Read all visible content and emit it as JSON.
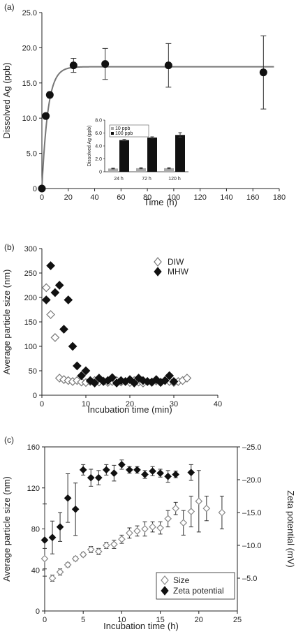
{
  "chart_data": [
    {
      "panel_label": "(a)",
      "type": "scatter",
      "xlabel": "Time (h)",
      "ylabel": "Dissolved Ag (ppb)",
      "xlim": [
        0,
        180
      ],
      "ylim": [
        0,
        25
      ],
      "x_ticks": [
        "0",
        "20",
        "40",
        "60",
        "80",
        "100",
        "120",
        "140",
        "160",
        "180"
      ],
      "y_ticks": [
        "0",
        "5.0",
        "10.0",
        "15.0",
        "20.0",
        "25.0"
      ],
      "series": [
        {
          "x": [
            0,
            3,
            6,
            24,
            48,
            96,
            168
          ],
          "y": [
            0,
            10.3,
            13.3,
            17.5,
            17.7,
            17.5,
            16.5
          ],
          "err": [
            0,
            0,
            0,
            1.0,
            2.2,
            3.1,
            5.2
          ],
          "color": "#111111"
        }
      ],
      "fit_curve": {
        "plateau": 17.3,
        "rate": 0.22
      },
      "inset": {
        "type": "bar",
        "ylabel": "Dissolved Ag (ppb)",
        "ylim": [
          0,
          8
        ],
        "y_ticks": [
          "0",
          "2.0",
          "4.0",
          "6.0",
          "8.0"
        ],
        "categories": [
          "24 h",
          "72 h",
          "120 h"
        ],
        "series": [
          {
            "name": "10 ppb",
            "values": [
              0.5,
              0.55,
              0.55
            ],
            "err": [
              0.06,
              0.08,
              0.08
            ],
            "color": "#aaaaaa"
          },
          {
            "name": "100 ppb",
            "values": [
              4.9,
              5.3,
              5.7
            ],
            "err": [
              0.1,
              0.1,
              0.35
            ],
            "color": "#111111"
          }
        ]
      }
    },
    {
      "panel_label": "(b)",
      "type": "scatter",
      "xlabel": "Incubation time (min)",
      "ylabel": "Average particle size (nm)",
      "xlim": [
        0,
        40
      ],
      "ylim": [
        0,
        300
      ],
      "x_ticks": [
        "0",
        "10",
        "20",
        "30",
        "40"
      ],
      "y_ticks": [
        "0",
        "50",
        "100",
        "150",
        "200",
        "250",
        "300"
      ],
      "series": [
        {
          "name": "DIW",
          "marker": "open-diamond",
          "x": [
            1,
            2,
            3,
            4,
            5,
            6,
            7,
            8,
            9,
            10,
            11,
            12,
            13,
            14,
            15,
            16,
            17,
            18,
            19,
            20,
            21,
            22,
            23,
            24,
            25,
            26,
            27,
            28,
            29,
            30,
            31,
            32,
            33
          ],
          "y": [
            220,
            165,
            118,
            35,
            32,
            30,
            28,
            30,
            27,
            26,
            28,
            30,
            27,
            29,
            26,
            28,
            30,
            27,
            28,
            26,
            30,
            27,
            25,
            28,
            26,
            29,
            27,
            30,
            28,
            26,
            28,
            30,
            35
          ]
        },
        {
          "name": "MHW",
          "marker": "filled-diamond",
          "x": [
            1,
            2,
            3,
            4,
            5,
            6,
            7,
            8,
            9,
            10,
            11,
            12,
            13,
            14,
            15,
            16,
            17,
            18,
            19,
            20,
            21,
            22,
            23,
            24,
            25,
            26,
            27,
            28,
            29,
            30
          ],
          "y": [
            195,
            265,
            210,
            225,
            135,
            195,
            100,
            60,
            40,
            50,
            30,
            25,
            35,
            28,
            30,
            36,
            25,
            30,
            28,
            32,
            25,
            35,
            30,
            28,
            27,
            32,
            26,
            30,
            40,
            28
          ]
        }
      ],
      "legend": "top-right"
    },
    {
      "panel_label": "(c)",
      "type": "scatter",
      "xlabel": "Incubation time (h)",
      "ylabel": "Average particle size (nm)",
      "y2label": "Zeta potential (mV)",
      "xlim": [
        0,
        25
      ],
      "ylim": [
        0,
        160
      ],
      "y2lim": [
        0,
        -25
      ],
      "x_ticks": [
        "0",
        "5",
        "10",
        "15",
        "20",
        "25"
      ],
      "y_ticks": [
        "0",
        "40",
        "80",
        "120",
        "160"
      ],
      "y2_ticks": [
        "–5.0",
        "–10.0",
        "–15.0",
        "–20.0",
        "–25.0"
      ],
      "series": [
        {
          "name": "Size",
          "marker": "open-diamond",
          "axis": "left",
          "x": [
            0,
            1,
            2,
            3,
            4,
            5,
            6,
            7,
            8,
            9,
            10,
            11,
            12,
            13,
            14,
            15,
            16,
            17,
            18,
            19,
            20,
            21,
            23
          ],
          "y": [
            51,
            32,
            38,
            45,
            51,
            55,
            60,
            58,
            64,
            65,
            70,
            76,
            78,
            80,
            82,
            81,
            90,
            100,
            86,
            97,
            107,
            100,
            96
          ],
          "err": [
            10,
            3,
            3,
            2,
            2,
            2,
            3,
            3,
            3,
            4,
            4,
            5,
            5,
            7,
            5,
            6,
            8,
            6,
            12,
            15,
            30,
            12,
            16
          ]
        },
        {
          "name": "Zeta potential",
          "marker": "filled-diamond",
          "axis": "right",
          "x": [
            0,
            1,
            2,
            3,
            4,
            5,
            6,
            7,
            8,
            9,
            10,
            11,
            12,
            13,
            14,
            15,
            16,
            17,
            19
          ],
          "y": [
            -10.8,
            -11.2,
            -12.8,
            -17.2,
            -15.5,
            -21.5,
            -20.3,
            -20.3,
            -21.5,
            -21.0,
            -22.3,
            -21.5,
            -21.5,
            -20.8,
            -21.3,
            -21.0,
            -20.5,
            -20.8,
            -21.1
          ],
          "err": [
            5.5,
            2.5,
            2.2,
            3.7,
            4.0,
            0.8,
            1.3,
            1.1,
            0.8,
            1.2,
            0.7,
            0.5,
            0.5,
            0.6,
            0.7,
            0.6,
            0.9,
            0.5,
            1.2
          ]
        }
      ],
      "legend": "bottom-right"
    }
  ]
}
